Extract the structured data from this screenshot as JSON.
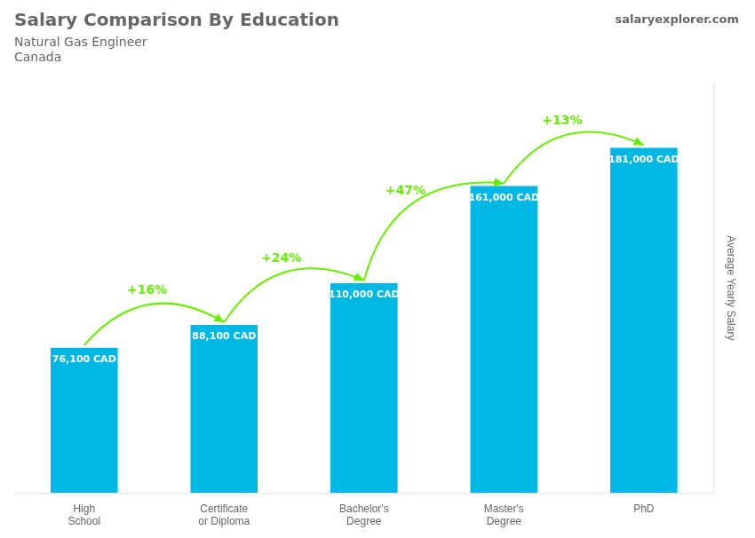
{
  "chart_data": {
    "type": "bar",
    "title": "Salary Comparison By Education",
    "subtitle": "Natural Gas Engineer",
    "country": "Canada",
    "source": "salaryexplorer.com",
    "ylabel": "Average Yearly Salary",
    "categories": [
      "High\nSchool",
      "Certificate\nor Diploma",
      "Bachelor's\nDegree",
      "Master's\nDegree",
      "PhD"
    ],
    "values": [
      76100,
      88100,
      110000,
      161000,
      181000
    ],
    "value_labels": [
      "76,100 CAD",
      "88,100 CAD",
      "110,000 CAD",
      "161,000 CAD",
      "181,000 CAD"
    ],
    "data_labels": true,
    "annotations": [
      "+16%",
      "+24%",
      "+47%",
      "+13%"
    ],
    "arrow_color": "#66ee00",
    "color": "#00b8e6",
    "ylim": [
      0,
      215000
    ],
    "tick_labels": "x",
    "grid": false
  }
}
